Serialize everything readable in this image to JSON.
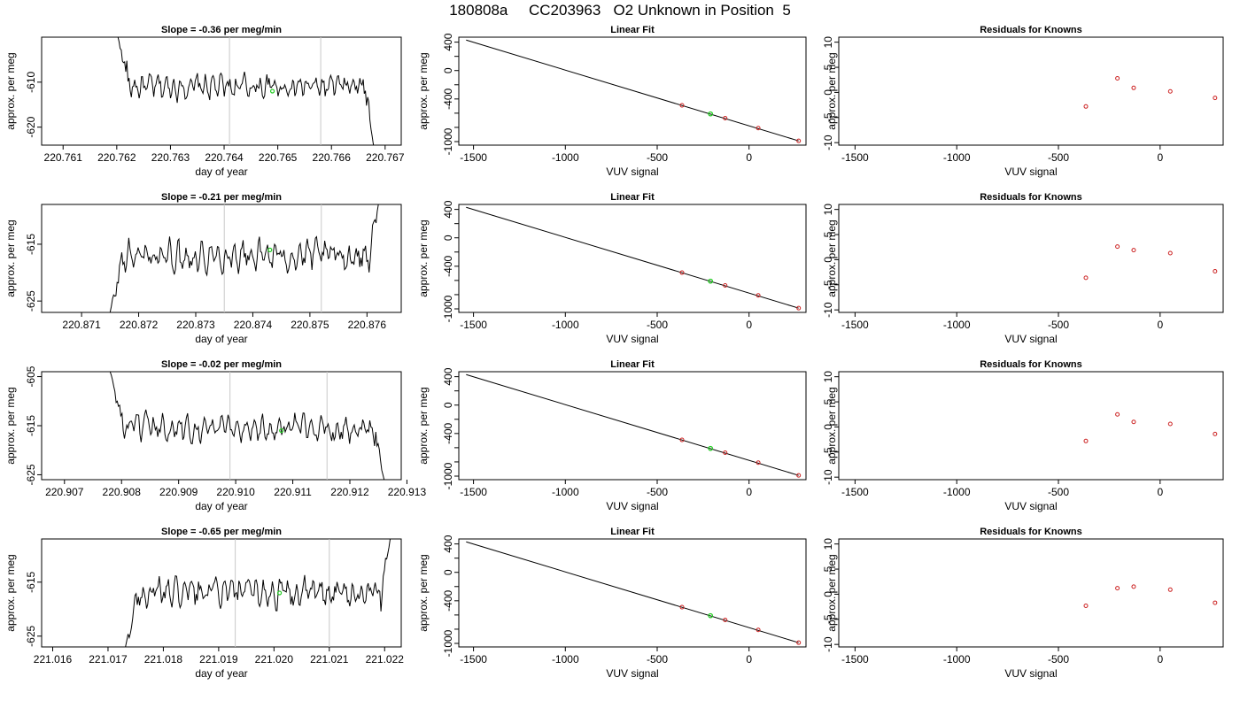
{
  "title": "180808a     CC203963   O2 Unknown in Position  5",
  "colors": {
    "trace": "#000000",
    "marker_green": "#22cc22",
    "marker_red": "#cc2222",
    "vertical_line": "#c8c8c8"
  },
  "rows": [
    {
      "ts_title": "Slope =  -0.36  per meg/min",
      "fit_title": "Linear Fit",
      "res_title": "Residuals for Knowns"
    },
    {
      "ts_title": "Slope =  -0.21  per meg/min",
      "fit_title": "Linear Fit",
      "res_title": "Residuals for Knowns"
    },
    {
      "ts_title": "Slope =  -0.02  per meg/min",
      "fit_title": "Linear Fit",
      "res_title": "Residuals for Knowns"
    },
    {
      "ts_title": "Slope =  -0.65  per meg/min",
      "fit_title": "Linear Fit",
      "res_title": "Residuals for Knowns"
    }
  ],
  "chart_data": [
    {
      "type": "line",
      "panel": "time-series",
      "title": "Slope =  -0.36  per meg/min",
      "xlabel": "day of year",
      "ylabel": "approx. per meg",
      "xlim": [
        220.7606,
        220.7673
      ],
      "ylim": [
        -624,
        -600
      ],
      "xticks": [
        "220.761",
        "220.762",
        "220.763",
        "220.764",
        "220.765",
        "220.766",
        "220.767"
      ],
      "xtick_values": [
        220.761,
        220.762,
        220.763,
        220.764,
        220.765,
        220.766,
        220.767
      ],
      "yticks": [
        "-610",
        "-620"
      ],
      "ytick_values": [
        -610,
        -620
      ],
      "vlines": [
        220.7641,
        220.7658
      ],
      "trace_start": 220.762,
      "trace_end": 220.7668,
      "trace_level": -611,
      "trace_noise": 2.5,
      "start_value": -599,
      "end_value": -625,
      "marker": {
        "x": 220.7649,
        "y": -612
      }
    },
    {
      "type": "line",
      "panel": "time-series",
      "title": "Slope =  -0.21  per meg/min",
      "xlabel": "day of year",
      "ylabel": "approx. per meg",
      "xlim": [
        220.8703,
        220.8766
      ],
      "ylim": [
        -627,
        -608
      ],
      "xticks": [
        "220.871",
        "220.872",
        "220.873",
        "220.874",
        "220.875",
        "220.876"
      ],
      "xtick_values": [
        220.871,
        220.872,
        220.873,
        220.874,
        220.875,
        220.876
      ],
      "yticks": [
        "-615",
        "-625"
      ],
      "ytick_values": [
        -615,
        -625
      ],
      "vlines": [
        220.8735,
        220.8752
      ],
      "trace_start": 220.8715,
      "trace_end": 220.8762,
      "trace_level": -617,
      "trace_noise": 2.5,
      "start_value": -627,
      "end_value": -608,
      "marker": {
        "x": 220.8743,
        "y": -616
      }
    },
    {
      "type": "line",
      "panel": "time-series",
      "title": "Slope =  -0.02  per meg/min",
      "xlabel": "day of year",
      "ylabel": "approx. per meg",
      "xlim": [
        220.9066,
        220.9129
      ],
      "ylim": [
        -626,
        -604
      ],
      "xticks": [
        "220.907",
        "220.908",
        "220.909",
        "220.910",
        "220.911",
        "220.912",
        "220.913"
      ],
      "xtick_values": [
        220.907,
        220.908,
        220.909,
        220.91,
        220.911,
        220.912,
        220.913
      ],
      "yticks": [
        "-605",
        "-615",
        "-625"
      ],
      "ytick_values": [
        -605,
        -615,
        -625
      ],
      "vlines": [
        220.9099,
        220.9116
      ],
      "trace_start": 220.9078,
      "trace_end": 220.9126,
      "trace_level": -615.5,
      "trace_noise": 2.5,
      "start_value": -604,
      "end_value": -626,
      "marker": {
        "x": 220.9108,
        "y": -616
      }
    },
    {
      "type": "line",
      "panel": "time-series",
      "title": "Slope =  -0.65  per meg/min",
      "xlabel": "day of year",
      "ylabel": "approx. per meg",
      "xlim": [
        221.0158,
        221.0223
      ],
      "ylim": [
        -627,
        -607
      ],
      "xticks": [
        "221.016",
        "221.017",
        "221.018",
        "221.019",
        "221.020",
        "221.021",
        "221.022"
      ],
      "xtick_values": [
        221.016,
        221.017,
        221.018,
        221.019,
        221.02,
        221.021,
        221.022
      ],
      "yticks": [
        "-615",
        "-625"
      ],
      "ytick_values": [
        -615,
        -625
      ],
      "vlines": [
        221.0193,
        221.021
      ],
      "trace_start": 221.0173,
      "trace_end": 221.0221,
      "trace_level": -617,
      "trace_noise": 2.5,
      "start_value": -628,
      "end_value": -607,
      "marker": {
        "x": 221.0201,
        "y": -617
      }
    },
    {
      "type": "scatter",
      "panel": "linear-fit",
      "title": "Linear Fit",
      "xlabel": "VUV signal",
      "ylabel": "",
      "xlim": [
        -1580,
        310
      ],
      "ylim": [
        -1050,
        470
      ],
      "xticks": [
        "-1500",
        "-1000",
        "-500",
        "0"
      ],
      "xtick_values": [
        -1500,
        -1000,
        -500,
        0
      ],
      "yticks": [
        "400",
        "0",
        "-400",
        "-1000"
      ],
      "ytick_values": [
        400,
        0,
        -400,
        -1000
      ],
      "ytick_minor": [
        200,
        -200,
        -600,
        -800
      ],
      "fit_line": {
        "x": [
          -1540,
          270
        ],
        "y": [
          430,
          -990
        ]
      },
      "knowns": {
        "x": [
          -365,
          -130,
          50,
          270
        ],
        "y": [
          -490,
          -670,
          -810,
          -990
        ]
      },
      "unknown": {
        "x": [
          -210
        ],
        "y": [
          -610
        ]
      }
    },
    {
      "type": "scatter",
      "panel": "linear-fit",
      "title": "Linear Fit",
      "xlabel": "VUV signal",
      "ylabel": "",
      "xlim": [
        -1580,
        310
      ],
      "ylim": [
        -1050,
        470
      ],
      "xticks": [
        "-1500",
        "-1000",
        "-500",
        "0"
      ],
      "xtick_values": [
        -1500,
        -1000,
        -500,
        0
      ],
      "yticks": [
        "400",
        "0",
        "-400",
        "-1000"
      ],
      "ytick_values": [
        400,
        0,
        -400,
        -1000
      ],
      "ytick_minor": [
        200,
        -200,
        -600,
        -800
      ],
      "fit_line": {
        "x": [
          -1540,
          270
        ],
        "y": [
          430,
          -990
        ]
      },
      "knowns": {
        "x": [
          -365,
          -130,
          50,
          270
        ],
        "y": [
          -490,
          -670,
          -810,
          -990
        ]
      },
      "unknown": {
        "x": [
          -210
        ],
        "y": [
          -610
        ]
      }
    },
    {
      "type": "scatter",
      "panel": "linear-fit",
      "title": "Linear Fit",
      "xlabel": "VUV signal",
      "ylabel": "",
      "xlim": [
        -1580,
        310
      ],
      "ylim": [
        -1050,
        470
      ],
      "xticks": [
        "-1500",
        "-1000",
        "-500",
        "0"
      ],
      "xtick_values": [
        -1500,
        -1000,
        -500,
        0
      ],
      "yticks": [
        "400",
        "0",
        "-400",
        "-1000"
      ],
      "ytick_values": [
        400,
        0,
        -400,
        -1000
      ],
      "ytick_minor": [
        200,
        -200,
        -600,
        -800
      ],
      "fit_line": {
        "x": [
          -1540,
          270
        ],
        "y": [
          430,
          -990
        ]
      },
      "knowns": {
        "x": [
          -365,
          -130,
          50,
          270
        ],
        "y": [
          -490,
          -670,
          -810,
          -990
        ]
      },
      "unknown": {
        "x": [
          -210
        ],
        "y": [
          -610
        ]
      }
    },
    {
      "type": "scatter",
      "panel": "linear-fit",
      "title": "Linear Fit",
      "xlabel": "VUV signal",
      "ylabel": "",
      "xlim": [
        -1580,
        310
      ],
      "ylim": [
        -1050,
        470
      ],
      "xticks": [
        "-1500",
        "-1000",
        "-500",
        "0"
      ],
      "xtick_values": [
        -1500,
        -1000,
        -500,
        0
      ],
      "yticks": [
        "400",
        "0",
        "-400",
        "-1000"
      ],
      "ytick_values": [
        400,
        0,
        -400,
        -1000
      ],
      "ytick_minor": [
        200,
        -200,
        -600,
        -800
      ],
      "fit_line": {
        "x": [
          -1540,
          270
        ],
        "y": [
          430,
          -990
        ]
      },
      "knowns": {
        "x": [
          -365,
          -130,
          50,
          270
        ],
        "y": [
          -490,
          -670,
          -810,
          -990
        ]
      },
      "unknown": {
        "x": [
          -210
        ],
        "y": [
          -610
        ]
      }
    },
    {
      "type": "scatter",
      "panel": "residuals",
      "title": "Residuals for Knowns",
      "xlabel": "VUV signal",
      "ylabel": "approx. per meg",
      "xlim": [
        -1580,
        310
      ],
      "ylim": [
        -10.5,
        11
      ],
      "xticks": [
        "-1500",
        "-1000",
        "-500",
        "0"
      ],
      "xtick_values": [
        -1500,
        -1000,
        -500,
        0
      ],
      "yticks": [
        "10",
        "5",
        "0",
        "-5",
        "-10"
      ],
      "ytick_values": [
        10,
        5,
        0,
        -5,
        -10
      ],
      "knowns": {
        "x": [
          -365,
          -210,
          -130,
          50,
          270
        ],
        "y": [
          -2.8,
          2.8,
          0.9,
          0.2,
          -1.1
        ]
      }
    },
    {
      "type": "scatter",
      "panel": "residuals",
      "title": "Residuals for Knowns",
      "xlabel": "VUV signal",
      "ylabel": "approx. per meg",
      "xlim": [
        -1580,
        310
      ],
      "ylim": [
        -10.5,
        11
      ],
      "xticks": [
        "-1500",
        "-1000",
        "-500",
        "0"
      ],
      "xtick_values": [
        -1500,
        -1000,
        -500,
        0
      ],
      "yticks": [
        "10",
        "5",
        "0",
        "-5",
        "-10"
      ],
      "ytick_values": [
        10,
        5,
        0,
        -5,
        -10
      ],
      "knowns": {
        "x": [
          -365,
          -210,
          -130,
          50,
          270
        ],
        "y": [
          -3.6,
          2.6,
          1.9,
          1.3,
          -2.3
        ]
      }
    },
    {
      "type": "scatter",
      "panel": "residuals",
      "title": "Residuals for Knowns",
      "xlabel": "VUV signal",
      "ylabel": "approx. per meg",
      "xlim": [
        -1580,
        310
      ],
      "ylim": [
        -10.5,
        11
      ],
      "xticks": [
        "-1500",
        "-1000",
        "-500",
        "0"
      ],
      "xtick_values": [
        -1500,
        -1000,
        -500,
        0
      ],
      "yticks": [
        "10",
        "5",
        "0",
        "-5",
        "-10"
      ],
      "ytick_values": [
        10,
        5,
        0,
        -5,
        -10
      ],
      "knowns": {
        "x": [
          -365,
          -210,
          -130,
          50,
          270
        ],
        "y": [
          -2.8,
          2.5,
          1.0,
          0.6,
          -1.4
        ]
      }
    },
    {
      "type": "scatter",
      "panel": "residuals",
      "title": "Residuals for Knowns",
      "xlabel": "VUV signal",
      "ylabel": "approx. per meg",
      "xlim": [
        -1580,
        310
      ],
      "ylim": [
        -10.5,
        11
      ],
      "xticks": [
        "-1500",
        "-1000",
        "-500",
        "0"
      ],
      "xtick_values": [
        -1500,
        -1000,
        -500,
        0
      ],
      "yticks": [
        "10",
        "5",
        "0",
        "-5",
        "-10"
      ],
      "ytick_values": [
        10,
        5,
        0,
        -5,
        -10
      ],
      "knowns": {
        "x": [
          -365,
          -210,
          -130,
          50,
          270
        ],
        "y": [
          -2.3,
          1.2,
          1.5,
          0.9,
          -1.7
        ]
      }
    }
  ]
}
